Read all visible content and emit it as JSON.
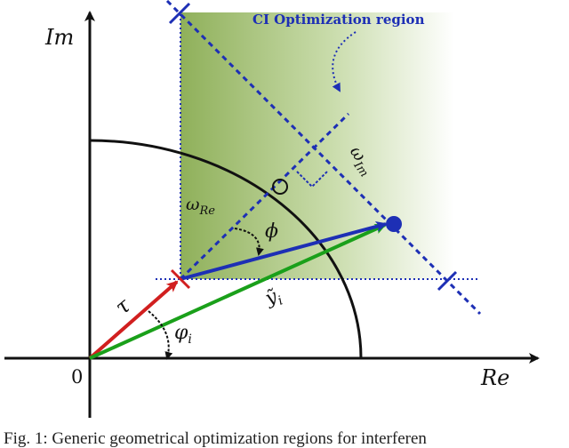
{
  "labels": {
    "region": "CI Optimization region",
    "axis_im": "Im",
    "axis_re": "Re",
    "origin": "0",
    "omega_re_base": "ω",
    "omega_re_sub": "Re",
    "omega_im_base": "ω",
    "omega_im_sub": "Im",
    "phi": "ϕ",
    "tau": "τ",
    "varphi": "φ",
    "varphi_sub": "i",
    "y": "ỹ",
    "y_sub": "i"
  },
  "caption": "Fig. 1: Generic geometrical optimization regions for interferen",
  "colors": {
    "region_fill_dark": "#8fb05a",
    "region_fill_light": "#ffffff",
    "blue": "#1d2fb5",
    "red": "#d11f1f",
    "green": "#1aa01a",
    "black": "#111111",
    "region_text": "#1d2fb5"
  }
}
